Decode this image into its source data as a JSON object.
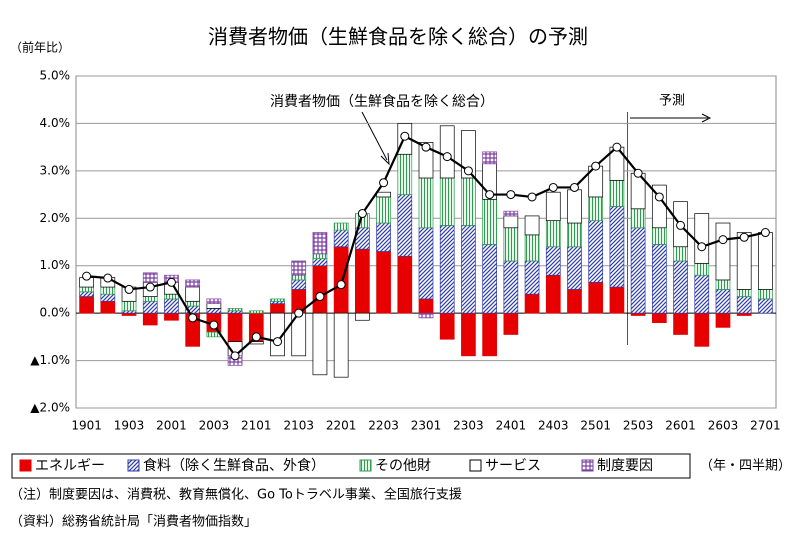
{
  "chart_data": {
    "type": "stacked_bar_line",
    "title": "消費者物価（生鮮食品を除く総合）の予測",
    "y_axis_label": "（前年比）",
    "x_axis_label": "（年・四半期）",
    "forecast_label": "予測",
    "notes": [
      "（注）制度要因は、消費税、教育無償化、Go Toトラベル事業、全国旅行支援",
      "（資料）総務省統計局「消費者物価指数」"
    ],
    "categories": [
      "1901",
      null,
      "1903",
      null,
      "2001",
      null,
      "2003",
      null,
      "2101",
      null,
      "2103",
      null,
      "2201",
      null,
      "2203",
      null,
      "2301",
      null,
      "2303",
      null,
      "2401",
      null,
      "2403",
      null,
      "2501",
      null,
      "2503",
      null,
      "2601",
      null,
      "2603",
      null,
      "2701"
    ],
    "ylim": [
      -2,
      5
    ],
    "yticks": [
      {
        "value": 5,
        "label": "5.0%"
      },
      {
        "value": 4,
        "label": "4.0%"
      },
      {
        "value": 3,
        "label": "3.0%"
      },
      {
        "value": 2,
        "label": "2.0%"
      },
      {
        "value": 1,
        "label": "1.0%"
      },
      {
        "value": 0,
        "label": "0.0%"
      },
      {
        "value": -1,
        "label": "▲1.0%"
      },
      {
        "value": -2,
        "label": "▲2.0%"
      }
    ],
    "grid": true,
    "series": [
      {
        "name": "エネルギー",
        "color": "#e60000",
        "pattern": "solid",
        "values": [
          0.35,
          0.25,
          -0.05,
          -0.25,
          -0.15,
          -0.7,
          -0.4,
          -0.6,
          -0.6,
          0.2,
          0.5,
          1.0,
          1.4,
          1.35,
          1.3,
          1.2,
          0.3,
          -0.55,
          -0.9,
          -0.9,
          -0.45,
          0.4,
          0.8,
          0.5,
          0.65,
          0.55,
          -0.05,
          -0.2,
          -0.45,
          -0.7,
          -0.3,
          -0.05,
          0.0
        ]
      },
      {
        "name": "食料（除く生鮮食品、外食）",
        "color": "#2e3ca8",
        "pattern": "hatch",
        "values": [
          0.1,
          0.15,
          0.05,
          0.25,
          0.3,
          0.15,
          0.1,
          0.05,
          0.0,
          0.05,
          0.2,
          0.15,
          0.35,
          0.45,
          0.6,
          1.3,
          1.5,
          1.85,
          1.85,
          1.45,
          1.1,
          0.7,
          0.6,
          0.9,
          1.3,
          1.7,
          1.8,
          1.45,
          1.1,
          0.8,
          0.5,
          0.35,
          0.3
        ]
      },
      {
        "name": "その他財",
        "color": "#2e9e4e",
        "pattern": "vlines",
        "values": [
          0.1,
          0.15,
          0.2,
          0.1,
          0.1,
          0.1,
          -0.1,
          0.05,
          0.05,
          0.05,
          0.1,
          0.1,
          0.15,
          0.3,
          0.55,
          0.85,
          1.05,
          1.0,
          1.0,
          0.95,
          0.7,
          0.55,
          0.55,
          0.5,
          0.5,
          0.55,
          0.4,
          0.35,
          0.3,
          0.25,
          0.2,
          0.15,
          0.2
        ]
      },
      {
        "name": "サービス",
        "color": "#ffffff",
        "pattern": "outline",
        "values": [
          0.2,
          0.2,
          0.3,
          0.3,
          0.25,
          0.3,
          0.1,
          -0.3,
          -0.05,
          -0.9,
          -0.9,
          -1.3,
          -1.35,
          -0.15,
          0.1,
          0.65,
          0.75,
          1.1,
          1.0,
          0.75,
          0.25,
          0.4,
          0.6,
          0.7,
          0.65,
          0.7,
          0.75,
          0.9,
          0.95,
          1.05,
          1.2,
          1.2,
          1.2
        ]
      },
      {
        "name": "制度要因",
        "color": "#7b3fa0",
        "pattern": "grid",
        "values": [
          0,
          0,
          0,
          0.2,
          0.15,
          0.15,
          0.1,
          -0.2,
          0,
          0,
          0.3,
          0.45,
          0,
          0,
          0,
          0,
          -0.1,
          0,
          0,
          0.25,
          0.1,
          0,
          0,
          0,
          0,
          0,
          0,
          0,
          0,
          0,
          0,
          0,
          0
        ]
      }
    ],
    "line": {
      "name": "消費者物価（生鮮食品を除く総合）",
      "color": "#000000",
      "values": [
        0.78,
        0.74,
        0.5,
        0.55,
        0.65,
        -0.1,
        -0.25,
        -0.9,
        -0.5,
        -0.6,
        0.0,
        0.35,
        0.6,
        2.1,
        2.75,
        3.73,
        3.5,
        3.3,
        3.0,
        2.5,
        2.5,
        2.45,
        2.65,
        2.65,
        3.1,
        3.5,
        2.95,
        2.45,
        1.85,
        1.4,
        1.55,
        1.6,
        1.7
      ]
    }
  }
}
